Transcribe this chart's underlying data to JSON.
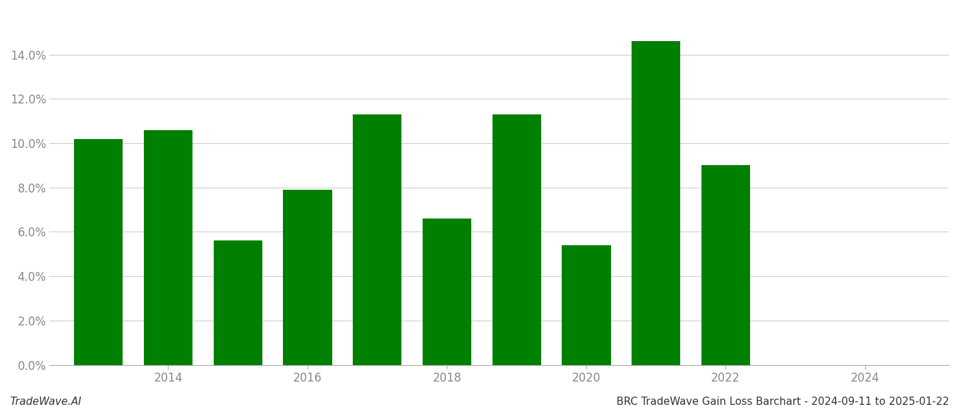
{
  "years": [
    2013,
    2014,
    2015,
    2016,
    2017,
    2018,
    2019,
    2020,
    2021,
    2022
  ],
  "values": [
    0.102,
    0.106,
    0.056,
    0.079,
    0.113,
    0.066,
    0.113,
    0.054,
    0.146,
    0.09
  ],
  "bar_color": "#008000",
  "xlim": [
    2012.3,
    2025.2
  ],
  "ylim": [
    0.0,
    0.16
  ],
  "yticks": [
    0.0,
    0.02,
    0.04,
    0.06,
    0.08,
    0.1,
    0.12,
    0.14
  ],
  "xtick_years": [
    2014,
    2016,
    2018,
    2020,
    2022,
    2024
  ],
  "background_color": "#ffffff",
  "grid_color": "#cccccc",
  "footer_left": "TradeWave.AI",
  "footer_right": "BRC TradeWave Gain Loss Barchart - 2024-09-11 to 2025-01-22",
  "footer_fontsize": 11,
  "tick_label_color": "#888888",
  "bar_width": 0.7
}
